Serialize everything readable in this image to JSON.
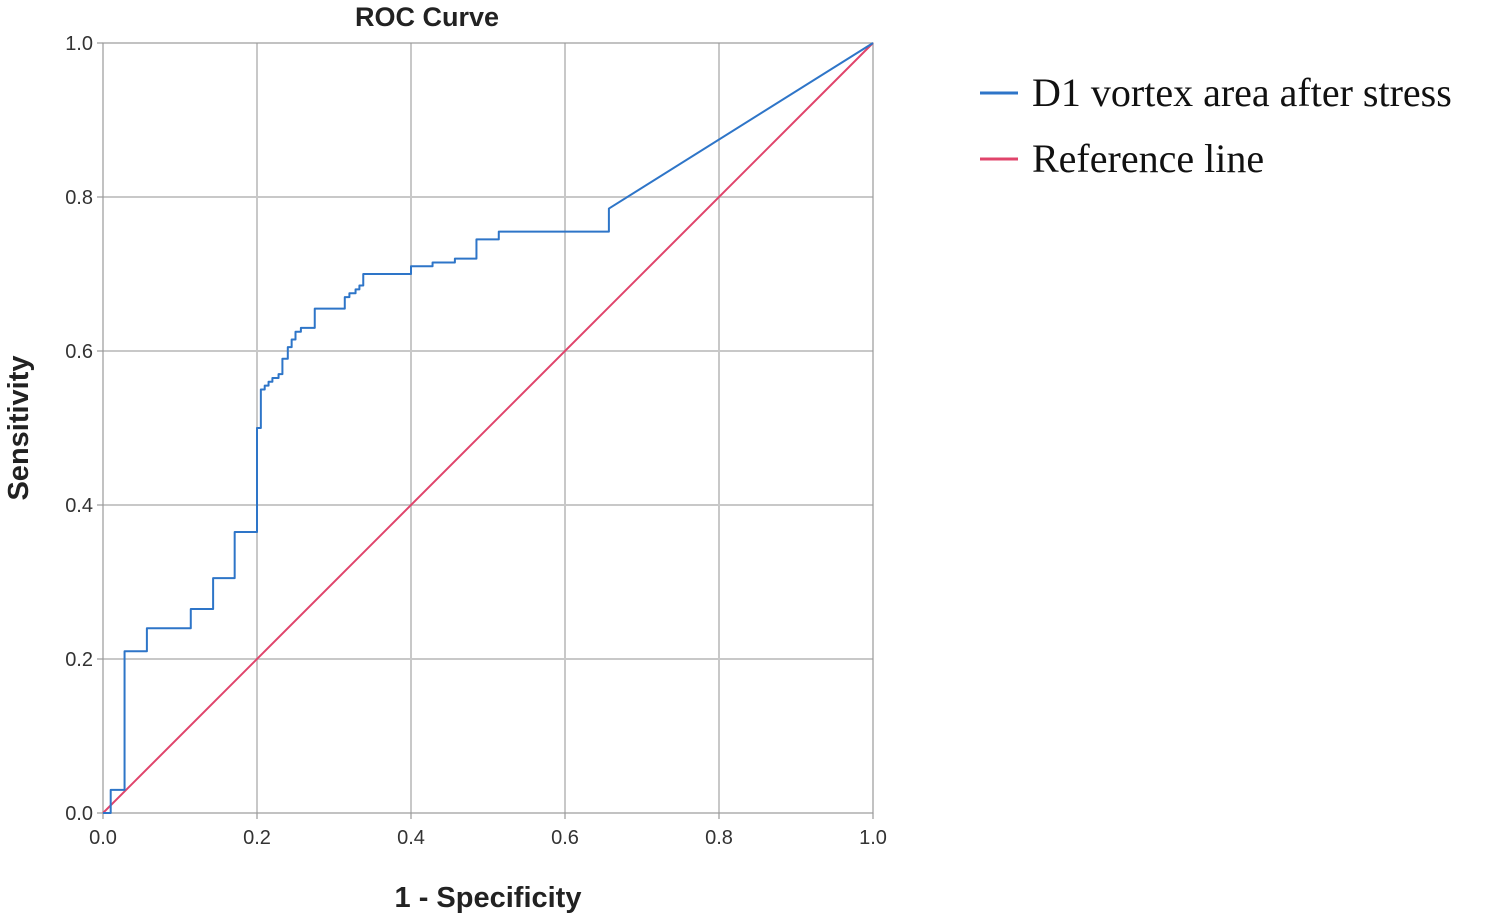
{
  "chart_data": {
    "type": "line",
    "title": "ROC Curve",
    "xlabel": "1 - Specificity",
    "ylabel": "Sensitivity",
    "xlim": [
      0,
      1
    ],
    "ylim": [
      0,
      1
    ],
    "grid": true,
    "legend_placement": "right",
    "x_ticks": [
      "0.0",
      "0.2",
      "0.4",
      "0.6",
      "0.8",
      "1.0"
    ],
    "y_ticks": [
      "0.0",
      "0.2",
      "0.4",
      "0.6",
      "0.8",
      "1.0"
    ],
    "series": [
      {
        "name": "D1 vortex area after stress",
        "color": "#2e75c8",
        "points": [
          [
            0.0,
            0.0
          ],
          [
            0.01,
            0.0
          ],
          [
            0.01,
            0.03
          ],
          [
            0.028,
            0.03
          ],
          [
            0.028,
            0.21
          ],
          [
            0.057,
            0.21
          ],
          [
            0.057,
            0.24
          ],
          [
            0.114,
            0.24
          ],
          [
            0.114,
            0.265
          ],
          [
            0.143,
            0.265
          ],
          [
            0.143,
            0.305
          ],
          [
            0.171,
            0.305
          ],
          [
            0.171,
            0.365
          ],
          [
            0.2,
            0.365
          ],
          [
            0.2,
            0.5
          ],
          [
            0.205,
            0.5
          ],
          [
            0.205,
            0.55
          ],
          [
            0.21,
            0.55
          ],
          [
            0.21,
            0.555
          ],
          [
            0.215,
            0.555
          ],
          [
            0.215,
            0.56
          ],
          [
            0.22,
            0.56
          ],
          [
            0.22,
            0.565
          ],
          [
            0.228,
            0.565
          ],
          [
            0.228,
            0.57
          ],
          [
            0.233,
            0.57
          ],
          [
            0.233,
            0.59
          ],
          [
            0.24,
            0.59
          ],
          [
            0.24,
            0.605
          ],
          [
            0.245,
            0.605
          ],
          [
            0.245,
            0.615
          ],
          [
            0.25,
            0.615
          ],
          [
            0.25,
            0.625
          ],
          [
            0.257,
            0.625
          ],
          [
            0.257,
            0.63
          ],
          [
            0.275,
            0.63
          ],
          [
            0.275,
            0.655
          ],
          [
            0.314,
            0.655
          ],
          [
            0.314,
            0.67
          ],
          [
            0.32,
            0.67
          ],
          [
            0.32,
            0.675
          ],
          [
            0.328,
            0.675
          ],
          [
            0.328,
            0.68
          ],
          [
            0.333,
            0.68
          ],
          [
            0.333,
            0.685
          ],
          [
            0.338,
            0.685
          ],
          [
            0.338,
            0.7
          ],
          [
            0.4,
            0.7
          ],
          [
            0.4,
            0.71
          ],
          [
            0.428,
            0.71
          ],
          [
            0.428,
            0.715
          ],
          [
            0.457,
            0.715
          ],
          [
            0.457,
            0.72
          ],
          [
            0.485,
            0.72
          ],
          [
            0.485,
            0.745
          ],
          [
            0.514,
            0.745
          ],
          [
            0.514,
            0.755
          ],
          [
            0.657,
            0.755
          ],
          [
            0.657,
            0.785
          ],
          [
            1.0,
            1.0
          ]
        ]
      },
      {
        "name": "Reference line",
        "color": "#e0446b",
        "points": [
          [
            0,
            0
          ],
          [
            1,
            1
          ]
        ]
      }
    ]
  }
}
